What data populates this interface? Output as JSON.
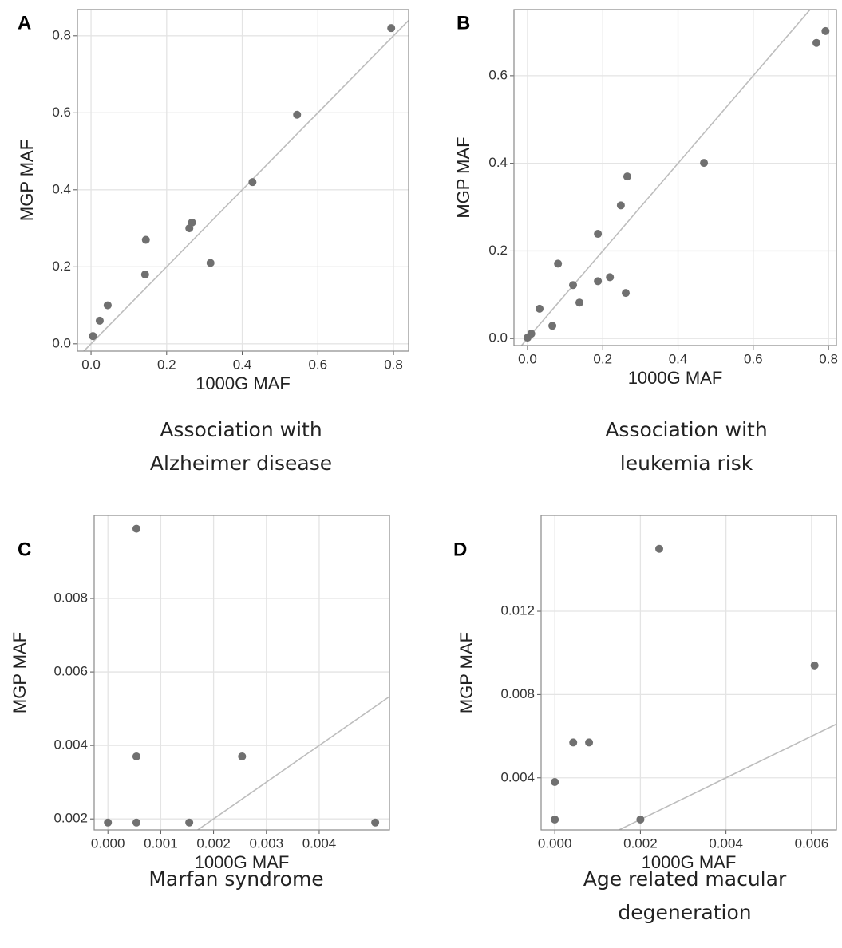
{
  "chart_data": [
    {
      "type": "scatter",
      "panel": "A",
      "caption": [
        "Association with",
        "Alzheimer disease"
      ],
      "x_label": "1000G MAF",
      "y_label": "MGP MAF",
      "color": "#707070",
      "grid": true,
      "identity_line": true,
      "x": [
        0.005,
        0.023,
        0.044,
        0.143,
        0.145,
        0.26,
        0.267,
        0.316,
        0.427,
        0.545,
        0.794
      ],
      "values": [
        0.02,
        0.06,
        0.1,
        0.18,
        0.27,
        0.3,
        0.315,
        0.21,
        0.42,
        0.595,
        0.82
      ],
      "xlim": [
        -0.036,
        0.84
      ],
      "ylim": [
        -0.019,
        0.868
      ],
      "xticks": [
        {
          "value": 0,
          "label": "0.0"
        },
        0.2,
        0.4,
        0.6,
        0.8
      ],
      "yticks": [
        {
          "value": 0,
          "label": "0.0"
        },
        0.2,
        0.4,
        0.6,
        0.8
      ]
    },
    {
      "type": "scatter",
      "panel": "B",
      "caption": [
        "Association with",
        "leukemia risk"
      ],
      "x_label": "1000G MAF",
      "y_label": "MGP MAF",
      "color": "#707070",
      "grid": true,
      "identity_line": true,
      "x": [
        0,
        0.01,
        0.032,
        0.066,
        0.081,
        0.121,
        0.138,
        0.187,
        0.187,
        0.219,
        0.248,
        0.261,
        0.265,
        0.469,
        0.768,
        0.792
      ],
      "values": [
        0.002,
        0.011,
        0.068,
        0.029,
        0.171,
        0.122,
        0.082,
        0.131,
        0.239,
        0.14,
        0.304,
        0.104,
        0.37,
        0.401,
        0.675,
        0.702
      ],
      "xlim": [
        -0.036,
        0.821
      ],
      "ylim": [
        -0.016,
        0.751
      ],
      "xticks": [
        {
          "value": 0,
          "label": "0.0"
        },
        0.2,
        0.4,
        0.6,
        0.8
      ],
      "yticks": [
        {
          "value": 0,
          "label": "0.0"
        },
        0.2,
        0.4,
        0.6
      ]
    },
    {
      "type": "scatter",
      "panel": "C",
      "caption": [
        "Marfan syndrome"
      ],
      "x_label": "1000G MAF",
      "y_label": "MGP MAF",
      "color": "#707070",
      "grid": true,
      "identity_line": true,
      "x": [
        0,
        0.00054,
        0.00054,
        0.00054,
        0.00154,
        0.00254,
        0.00506
      ],
      "values": [
        0.0019,
        0.0019,
        0.0037,
        0.0099,
        0.0019,
        0.0037,
        0.0019
      ],
      "xlim": [
        -0.00026,
        0.00533
      ],
      "ylim": [
        0.0017,
        0.01026
      ],
      "xticks": [
        {
          "value": 0,
          "label": "0.000"
        },
        0.001,
        0.002,
        0.003,
        0.004
      ],
      "yticks": [
        0.002,
        0.004,
        0.006,
        0.008
      ]
    },
    {
      "type": "scatter",
      "panel": "D",
      "caption": [
        "Age related macular",
        "degeneration"
      ],
      "x_label": "1000G MAF",
      "y_label": "MGP MAF",
      "color": "#707070",
      "grid": true,
      "identity_line": true,
      "x": [
        0,
        0,
        0.00043,
        0.0008,
        0.002,
        0.00244,
        0.00607
      ],
      "values": [
        0.002,
        0.0038,
        0.0057,
        0.0057,
        0.002,
        0.015,
        0.0094
      ],
      "xlim": [
        -0.00032,
        0.00658
      ],
      "ylim": [
        0.0015,
        0.0166
      ],
      "xticks": [
        {
          "value": 0,
          "label": "0.000"
        },
        0.002,
        0.004,
        0.006
      ],
      "yticks": [
        0.004,
        0.008,
        0.012
      ]
    }
  ]
}
